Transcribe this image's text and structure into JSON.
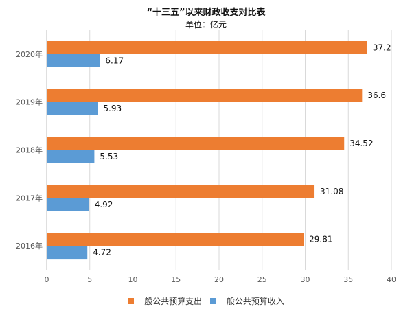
{
  "chart_data": {
    "type": "bar",
    "orientation": "horizontal",
    "title": "“十三五”以来财政收支对比表",
    "subtitle": "单位：亿元",
    "categories": [
      "2020年",
      "2019年",
      "2018年",
      "2017年",
      "2016年"
    ],
    "series": [
      {
        "name": "一般公共预算支出",
        "values": [
          37.2,
          36.6,
          34.52,
          31.08,
          29.81
        ],
        "labels": [
          "37.2",
          "36.6",
          "34.52",
          "31.08",
          "29.81"
        ],
        "color": "#ED7D31"
      },
      {
        "name": "一般公共预算收入",
        "values": [
          6.17,
          5.93,
          5.53,
          4.92,
          4.72
        ],
        "labels": [
          "6.17",
          "5.93",
          "5.53",
          "4.92",
          "4.72"
        ],
        "color": "#5B9BD5"
      }
    ],
    "xlim": [
      0,
      40
    ],
    "xticks": [
      0,
      5,
      10,
      15,
      20,
      25,
      30,
      35,
      40
    ],
    "grid": true,
    "legend_position": "bottom"
  }
}
